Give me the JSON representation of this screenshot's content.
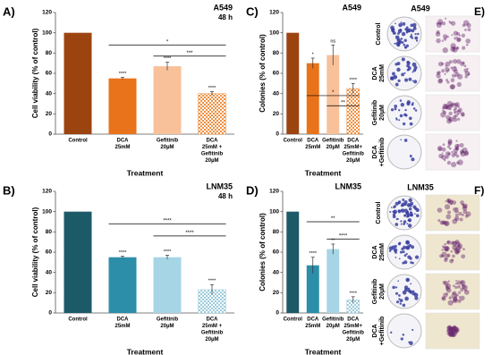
{
  "chart_data": [
    {
      "type": "bar",
      "panel": "A)",
      "title": "A549",
      "subtitle": "48 h",
      "y_label": "Cell viability (% of control)",
      "x_label": "Treatment",
      "categories": [
        [
          "Control"
        ],
        [
          "DCA",
          "25mM"
        ],
        [
          "Gefitinib",
          "20µM"
        ],
        [
          "DCA",
          "25mM +",
          "Gefitinib",
          "20µM"
        ]
      ],
      "values": [
        100,
        55,
        67,
        40
      ],
      "errors": [
        null,
        1,
        4,
        2
      ],
      "significance": [
        null,
        "****",
        "****",
        "****"
      ],
      "comparisons": [
        "*",
        "***"
      ],
      "colors": [
        "#9c4410",
        "#e8731b",
        "#f8c19a",
        "#ef8f40"
      ],
      "hatched": [
        false,
        false,
        false,
        true
      ],
      "ylim": [
        0,
        120
      ],
      "yticks": [
        0,
        20,
        40,
        60,
        80,
        100,
        120
      ]
    },
    {
      "type": "bar",
      "panel": "B)",
      "title": "LNM35",
      "subtitle": "48 h",
      "y_label": "Cell viability (% of control)",
      "x_label": "Treatment",
      "categories": [
        [
          "Control"
        ],
        [
          "DCA",
          "25mM"
        ],
        [
          "Gefitinib",
          "20µM"
        ],
        [
          "DCA",
          "25mM +",
          "Gefitinib",
          "20µM"
        ]
      ],
      "values": [
        100,
        55,
        55,
        23
      ],
      "errors": [
        null,
        1,
        2,
        5
      ],
      "significance": [
        null,
        "****",
        "****",
        "****"
      ],
      "comparisons": [
        "****",
        "****"
      ],
      "colors": [
        "#1d5a68",
        "#2c8ea8",
        "#a6d5e5",
        "#9ccbdb"
      ],
      "hatched": [
        false,
        false,
        false,
        true
      ],
      "ylim": [
        0,
        120
      ],
      "yticks": [
        0,
        20,
        40,
        60,
        80,
        100,
        120
      ]
    },
    {
      "type": "bar",
      "panel": "C)",
      "title": "A549",
      "y_label": "Colonies (% of control)",
      "x_label": "Treatment",
      "categories": [
        [
          "Control"
        ],
        [
          "DCA",
          "25mM"
        ],
        [
          "Gefitinib",
          "20µM"
        ],
        [
          "DCA",
          "25mM+",
          "Gefitinib",
          "20µM"
        ]
      ],
      "values": [
        100,
        70,
        78,
        45
      ],
      "errors": [
        null,
        5,
        10,
        5
      ],
      "significance": [
        null,
        "*",
        "ns",
        "****"
      ],
      "comparisons": [
        "*",
        "**"
      ],
      "colors": [
        "#9c4410",
        "#e8731b",
        "#f8c19a",
        "#ef8f40"
      ],
      "hatched": [
        false,
        false,
        false,
        true
      ],
      "ylim": [
        0,
        120
      ],
      "yticks": [
        0,
        20,
        40,
        60,
        80,
        100,
        120
      ]
    },
    {
      "type": "bar",
      "panel": "D)",
      "title": "LNM35",
      "y_label": "Colonies (% of control)",
      "x_label": "Treatment",
      "categories": [
        [
          "Control"
        ],
        [
          "DCA",
          "25mM"
        ],
        [
          "Gefitinib",
          "20µM"
        ],
        [
          "DCA",
          "25mM+",
          "Gefitinib",
          "20µM"
        ]
      ],
      "values": [
        100,
        47,
        63,
        13
      ],
      "errors": [
        null,
        8,
        5,
        3
      ],
      "significance": [
        null,
        "****",
        "**",
        "****"
      ],
      "comparisons": [
        "**",
        "****"
      ],
      "colors": [
        "#1d5a68",
        "#2c8ea8",
        "#a6d5e5",
        "#9ccbdb"
      ],
      "hatched": [
        false,
        false,
        false,
        true
      ],
      "ylim": [
        0,
        120
      ],
      "yticks": [
        0,
        20,
        40,
        60,
        80,
        100,
        120
      ]
    }
  ],
  "image_panels": [
    {
      "panel": "E)",
      "title": "A549",
      "rows": [
        [
          "Control"
        ],
        [
          "DCA",
          "25mM"
        ],
        [
          "Gefitinib",
          "20µM"
        ],
        [
          "DCA",
          "+Gefitinib"
        ]
      ]
    },
    {
      "panel": "F)",
      "title": "LNM35",
      "rows": [
        [
          "Control"
        ],
        [
          "DCA",
          "25mM"
        ],
        [
          "Gefitinib",
          "20µM"
        ],
        [
          "DCA",
          "+Gefitinib"
        ]
      ]
    }
  ]
}
